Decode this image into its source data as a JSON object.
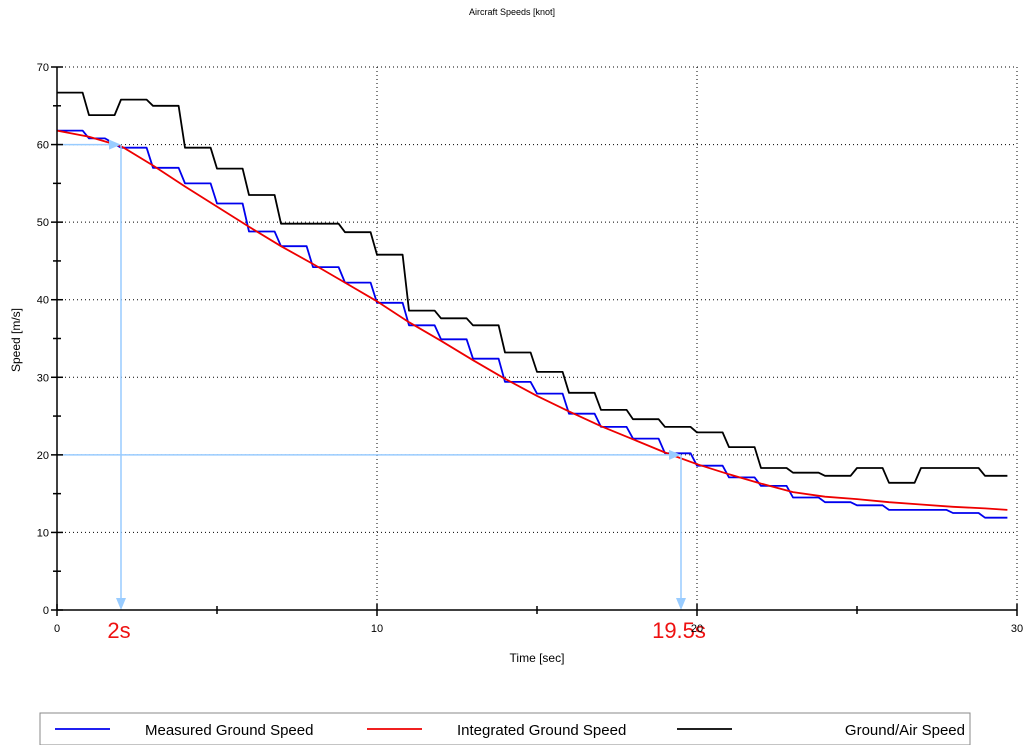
{
  "chart_data": {
    "type": "line",
    "title": "Aircraft Speeds [knot]",
    "xlabel": "Time [sec]",
    "ylabel": "Speed [m/s]",
    "xlim": [
      0,
      30
    ],
    "ylim": [
      0,
      70
    ],
    "x_ticks": [
      0,
      10,
      20,
      30
    ],
    "y_ticks": [
      0,
      10,
      20,
      30,
      40,
      50,
      60,
      70
    ],
    "grid": true,
    "legend_position": "bottom",
    "series": [
      {
        "name": "Measured Ground Speed",
        "color": "#0000ee",
        "style": "step",
        "x": [
          0,
          0.8,
          1.0,
          1.5,
          2.0,
          2.8,
          3.0,
          3.8,
          4.0,
          4.8,
          5.0,
          5.8,
          6.0,
          6.8,
          7.0,
          7.8,
          8.0,
          8.8,
          9.0,
          9.8,
          10.0,
          10.8,
          11.0,
          11.8,
          12.0,
          12.8,
          13.0,
          13.8,
          14.0,
          14.8,
          15.0,
          15.8,
          16.0,
          16.8,
          17.0,
          17.8,
          18.0,
          18.8,
          19.0,
          19.8,
          20.0,
          20.8,
          21.0,
          21.8,
          22.0,
          22.8,
          23.0,
          23.8,
          24.0,
          24.8,
          25.0,
          25.8,
          26.0,
          26.8,
          27.0,
          27.8,
          28.0,
          28.8,
          29.0,
          29.7
        ],
        "y": [
          61.8,
          61.8,
          60.8,
          60.8,
          59.6,
          59.6,
          57.0,
          57.0,
          55.0,
          55.0,
          52.4,
          52.4,
          48.8,
          48.8,
          46.9,
          46.9,
          44.2,
          44.2,
          42.2,
          42.2,
          39.6,
          39.6,
          36.7,
          36.7,
          34.9,
          34.9,
          32.4,
          32.4,
          29.4,
          29.4,
          27.9,
          27.9,
          25.3,
          25.3,
          23.6,
          23.6,
          22.1,
          22.1,
          20.2,
          20.2,
          18.6,
          18.6,
          17.1,
          17.1,
          16.0,
          16.0,
          14.5,
          14.5,
          13.9,
          13.9,
          13.5,
          13.5,
          12.9,
          12.9,
          12.9,
          12.9,
          12.5,
          12.5,
          11.9,
          11.9
        ]
      },
      {
        "name": "Integrated Ground Speed",
        "color": "#ee0000",
        "style": "line",
        "x": [
          0,
          1,
          2,
          3,
          4,
          5,
          6,
          7,
          8,
          9,
          10,
          11,
          12,
          13,
          14,
          15,
          16,
          17,
          18,
          19,
          20,
          21,
          22,
          23,
          24,
          25,
          26,
          27,
          28,
          29,
          29.7
        ],
        "y": [
          61.8,
          61.0,
          59.8,
          57.3,
          54.6,
          52.0,
          49.4,
          46.9,
          44.6,
          42.2,
          39.8,
          37.1,
          34.7,
          32.2,
          29.8,
          27.6,
          25.6,
          23.7,
          22.0,
          20.3,
          18.8,
          17.5,
          16.3,
          15.2,
          14.6,
          14.3,
          13.9,
          13.6,
          13.3,
          13.1,
          12.9
        ]
      },
      {
        "name": "Ground/Air Speed",
        "color": "#000000",
        "style": "step",
        "x": [
          0,
          0.8,
          1.0,
          1.8,
          2.0,
          2.8,
          3.0,
          3.8,
          4.0,
          4.8,
          5.0,
          5.8,
          6.0,
          6.8,
          7.0,
          8.8,
          9.0,
          9.8,
          10.0,
          10.8,
          11.0,
          11.8,
          12.0,
          12.8,
          13.0,
          13.8,
          14.0,
          14.8,
          15.0,
          15.8,
          16.0,
          16.8,
          17.0,
          17.8,
          18.0,
          18.8,
          19.0,
          19.8,
          20.0,
          20.8,
          21.0,
          21.8,
          22.0,
          22.8,
          23.0,
          23.8,
          24.0,
          24.8,
          25.0,
          25.8,
          26.0,
          26.8,
          27.0,
          28.8,
          29.0,
          29.7
        ],
        "y": [
          66.7,
          66.7,
          63.8,
          63.8,
          65.8,
          65.8,
          65.0,
          65.0,
          59.6,
          59.6,
          56.9,
          56.9,
          53.5,
          53.5,
          49.8,
          49.8,
          48.7,
          48.7,
          45.8,
          45.8,
          38.6,
          38.6,
          37.6,
          37.6,
          36.7,
          36.7,
          33.2,
          33.2,
          30.7,
          30.7,
          28.0,
          28.0,
          25.8,
          25.8,
          24.6,
          24.6,
          23.6,
          23.6,
          22.9,
          22.9,
          21.0,
          21.0,
          18.3,
          18.3,
          17.7,
          17.7,
          17.3,
          17.3,
          18.3,
          18.3,
          16.4,
          16.4,
          18.3,
          18.3,
          17.3,
          17.3
        ]
      }
    ],
    "annotations": [
      {
        "label": "2s",
        "color": "#ee1111",
        "line_color": "#99ccff",
        "x": 2,
        "y": 60
      },
      {
        "label": "19.5s",
        "color": "#ee1111",
        "line_color": "#99ccff",
        "x": 19.5,
        "y": 20
      }
    ]
  }
}
